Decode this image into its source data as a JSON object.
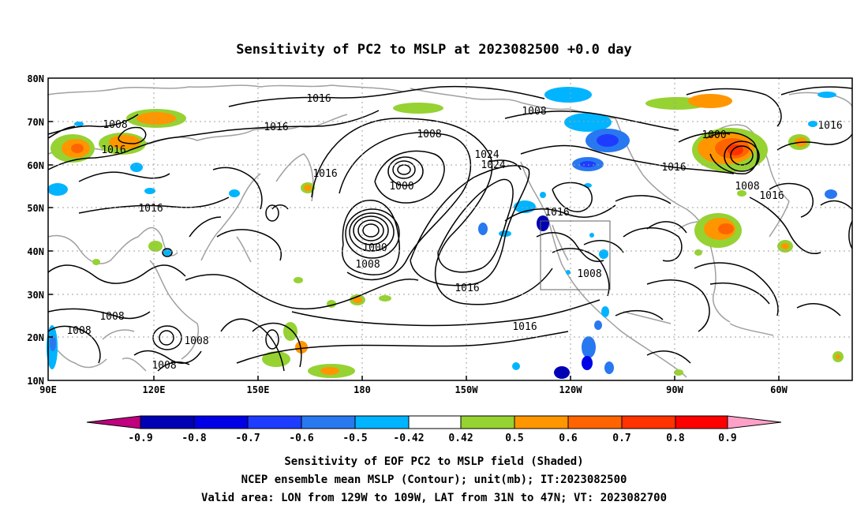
{
  "title": "Sensitivity of PC2 to MSLP at 2023082500 +0.0 day",
  "map": {
    "lon_labels": [
      "90E",
      "120E",
      "150E",
      "180",
      "150W",
      "120W",
      "90W",
      "60W"
    ],
    "lat_labels": [
      "80N",
      "70N",
      "60N",
      "50N",
      "40N",
      "30N",
      "20N",
      "10N"
    ],
    "grid": "dotted",
    "valid_box": {
      "lon_range": "129W to 109W",
      "lat_range": "31N to 47N"
    },
    "contour_labels": [
      "1016",
      "1008",
      "1016",
      "1016",
      "1016",
      "1008",
      "1000",
      "1000",
      "1008",
      "1016",
      "1024",
      "1008",
      "1016",
      "1024",
      "1016",
      "1008",
      "1016",
      "1000",
      "1016",
      "1008",
      "1016",
      "1008",
      "1008",
      "1008",
      "1008",
      "1016"
    ]
  },
  "colorbar": {
    "tick_labels": [
      "-0.9",
      "-0.8",
      "-0.7",
      "-0.6",
      "-0.5",
      "-0.42",
      "0.42",
      "0.5",
      "0.6",
      "0.7",
      "0.8",
      "0.9"
    ],
    "colors": {
      "below_min": "#c0007f",
      "bins": [
        "#0000b4",
        "#0000e6",
        "#1e3cff",
        "#2878f0",
        "#00b4ff",
        "#ffffff",
        "#96d232",
        "#ff9600",
        "#ff6400",
        "#ff3200",
        "#ff0000"
      ],
      "above_max": "#ffa0c8"
    }
  },
  "caption": [
    "Sensitivity of EOF PC2 to MSLP field (Shaded)",
    "NCEP ensemble mean MSLP (Contour); unit(mb); IT:2023082500",
    "Valid area: LON from 129W to 109W, LAT from 31N to 47N; VT: 2023082700"
  ],
  "colors": {
    "coast": "#a0a0a0",
    "contour": "#000000",
    "grid": "#a0a0a0"
  }
}
